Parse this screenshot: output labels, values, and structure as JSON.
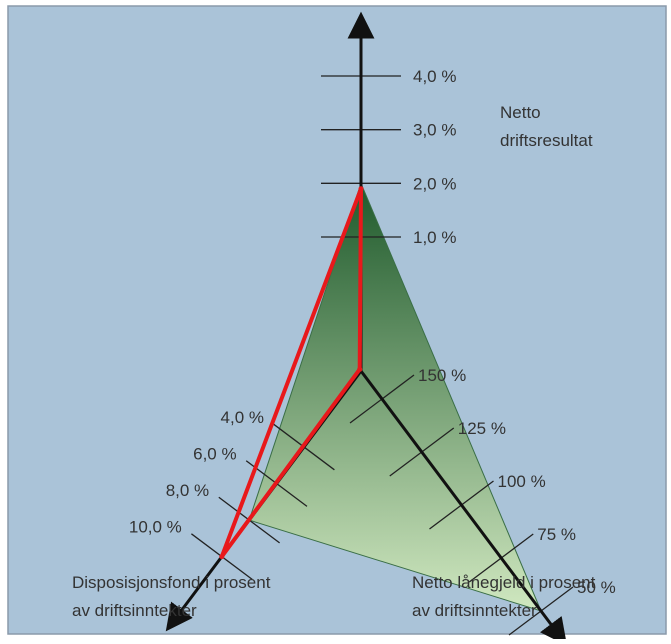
{
  "colors": {
    "panel_background": "#aac3d8",
    "panel_border": "#8a9aaa",
    "triangle_dark": "#1f5a2c",
    "triangle_light": "#d0e8c0",
    "axis": "#111111",
    "series": "#e8181b",
    "text": "#333333"
  },
  "chart_data": {
    "type": "radar",
    "axes": [
      {
        "key": "netto_driftsresultat",
        "title_lines": [
          "Netto",
          "driftsresultat"
        ],
        "unit": "%",
        "reversed": false,
        "ticks": [
          {
            "value": 1.0,
            "label": "1,0 %"
          },
          {
            "value": 2.0,
            "label": "2,0 %"
          },
          {
            "value": 3.0,
            "label": "3,0 %"
          },
          {
            "value": 4.0,
            "label": "4,0 %"
          }
        ],
        "benchmark": 2.0
      },
      {
        "key": "netto_lanegjeld",
        "title_lines": [
          "Netto lånegjeld i prosent",
          "av driftsinntekter"
        ],
        "unit": "%",
        "reversed": true,
        "ticks": [
          {
            "value": 150,
            "label": "150 %"
          },
          {
            "value": 125,
            "label": "125 %"
          },
          {
            "value": 100,
            "label": "100 %"
          },
          {
            "value": 75,
            "label": "75 %"
          },
          {
            "value": 50,
            "label": "50 %"
          }
        ],
        "benchmark": 50
      },
      {
        "key": "disposisjonsfond",
        "title_lines": [
          "Disposisjonsfond i prosent",
          "av driftsinntekter"
        ],
        "unit": "%",
        "reversed": false,
        "ticks": [
          {
            "value": 4.0,
            "label": "4,0 %"
          },
          {
            "value": 6.0,
            "label": "6,0 %"
          },
          {
            "value": 8.0,
            "label": "8,0 %"
          },
          {
            "value": 10.0,
            "label": "10,0 %"
          }
        ],
        "benchmark": 8.0
      }
    ],
    "series": [
      {
        "values": {
          "netto_driftsresultat": 1.9,
          "netto_lanegjeld": 164,
          "disposisjonsfond": 10.0
        }
      }
    ]
  }
}
